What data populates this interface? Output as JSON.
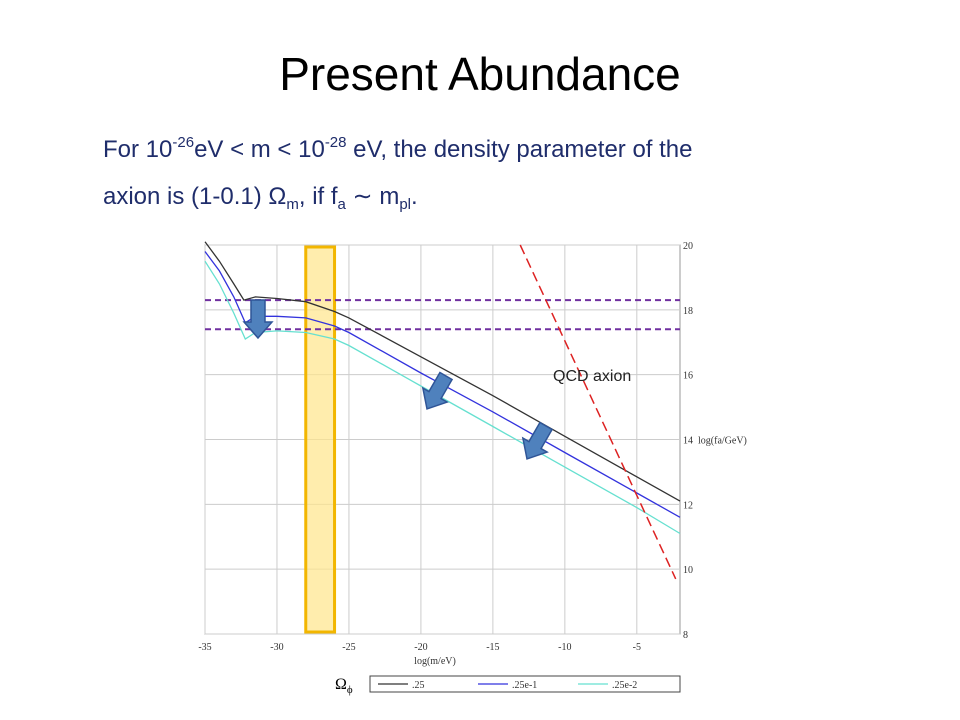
{
  "slide": {
    "title": "Present Abundance",
    "text_lines": [
      [
        "For 10",
        "-26",
        "eV < m < 10",
        "-28",
        " eV, the density parameter of the"
      ],
      [
        "axion is (1-0.1) ",
        "Ω",
        "m",
        ", if f",
        "a",
        " ∼ m",
        "pl",
        "."
      ]
    ]
  },
  "chart_data": {
    "type": "line",
    "x_label": "log(m/eV)",
    "y_label": "log(fa/GeV)",
    "annotation": "QCD axion",
    "legend_title": [
      "Ω",
      "ϕ"
    ],
    "xlim": [
      -35,
      -2
    ],
    "ylim": [
      8,
      20
    ],
    "xticks": [
      -35,
      -30,
      -25,
      -20,
      -15,
      -10,
      -5
    ],
    "yticks": [
      8,
      10,
      12,
      14,
      16,
      18,
      20
    ],
    "grid": true,
    "reference_lines": [
      18.3,
      17.4
    ],
    "highlight_x": [
      -28,
      -26
    ],
    "series": [
      {
        "name": ".25",
        "color": "#333333",
        "x": [
          -35,
          -34,
          -33,
          -32.3,
          -31.5,
          -30,
          -28,
          -26,
          -25,
          -20,
          -15,
          -10,
          -5,
          -2
        ],
        "values": [
          20.1,
          19.5,
          18.8,
          18.3,
          18.4,
          18.35,
          18.25,
          17.95,
          17.75,
          16.55,
          15.35,
          14.1,
          12.85,
          12.1
        ]
      },
      {
        "name": ".25e-1",
        "color": "#3333dd",
        "x": [
          -35,
          -34,
          -33,
          -32.2,
          -31.5,
          -30,
          -28,
          -26,
          -25,
          -20,
          -15,
          -10,
          -5,
          -2
        ],
        "values": [
          19.8,
          19.2,
          18.4,
          17.6,
          17.8,
          17.8,
          17.75,
          17.5,
          17.3,
          16.05,
          14.85,
          13.6,
          12.35,
          11.6
        ]
      },
      {
        "name": ".25e-2",
        "color": "#66e0d0",
        "x": [
          -35,
          -34,
          -33,
          -32.2,
          -31.5,
          -30,
          -28,
          -26,
          -25,
          -20,
          -15,
          -10,
          -5,
          -2
        ],
        "values": [
          19.5,
          18.8,
          17.9,
          17.1,
          17.3,
          17.35,
          17.3,
          17.1,
          16.9,
          15.65,
          14.4,
          13.15,
          11.9,
          11.1
        ]
      }
    ],
    "qcd_line": {
      "color": "#dd2222",
      "x": [
        -13.1,
        -2.3
      ],
      "values": [
        20,
        9.7
      ]
    }
  }
}
